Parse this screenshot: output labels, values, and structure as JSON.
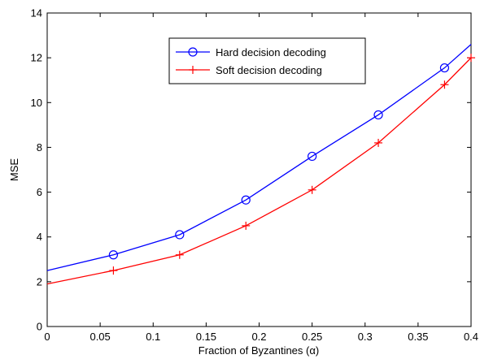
{
  "chart_data": {
    "type": "line",
    "title": "",
    "xlabel": "Fraction of Byzantines (α)",
    "ylabel": "MSE",
    "xlim": [
      0,
      0.4
    ],
    "ylim": [
      0,
      14
    ],
    "xticks": [
      0,
      0.05,
      0.1,
      0.15,
      0.2,
      0.25,
      0.3,
      0.35,
      0.4
    ],
    "xtick_labels": [
      "0",
      "0.05",
      "0.1",
      "0.15",
      "0.2",
      "0.25",
      "0.3",
      "0.35",
      "0.4"
    ],
    "yticks": [
      0,
      2,
      4,
      6,
      8,
      10,
      12,
      14
    ],
    "ytick_labels": [
      "0",
      "2",
      "4",
      "6",
      "8",
      "10",
      "12",
      "14"
    ],
    "grid": false,
    "legend_position": "top-center",
    "series": [
      {
        "name": "Hard decision decoding",
        "color": "#0000ff",
        "marker": "circle",
        "x": [
          0,
          0.0625,
          0.125,
          0.1875,
          0.25,
          0.3125,
          0.375,
          0.4
        ],
        "y": [
          2.5,
          3.2,
          4.1,
          5.65,
          7.6,
          9.45,
          11.55,
          12.6
        ],
        "markers_at": [
          0.0625,
          0.125,
          0.1875,
          0.25,
          0.3125,
          0.375
        ]
      },
      {
        "name": "Soft decision decoding",
        "color": "#ff0000",
        "marker": "plus",
        "x": [
          0,
          0.0625,
          0.125,
          0.1875,
          0.25,
          0.3125,
          0.375,
          0.4
        ],
        "y": [
          1.9,
          2.5,
          3.2,
          4.5,
          6.1,
          8.2,
          10.8,
          12.0
        ],
        "markers_at": [
          0.0625,
          0.125,
          0.1875,
          0.25,
          0.3125,
          0.375,
          0.4
        ]
      }
    ]
  }
}
